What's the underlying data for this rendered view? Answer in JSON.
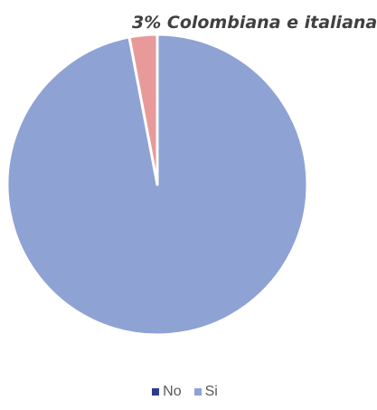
{
  "chart_data": {
    "type": "pie",
    "title": "",
    "annotation": "3% Colombiana e italiana",
    "categories": [
      "No",
      "Si"
    ],
    "values": [
      3,
      97
    ],
    "slices": [
      {
        "label": "No",
        "value": 3,
        "color": "#e89a9a"
      },
      {
        "label": "Si",
        "value": 97,
        "color": "#8ea2d4"
      }
    ],
    "legend": {
      "placement": "bottom",
      "entries": [
        {
          "label": "No",
          "color": "#2e3a8c"
        },
        {
          "label": "Si",
          "color": "#8ea2d4"
        }
      ]
    }
  }
}
